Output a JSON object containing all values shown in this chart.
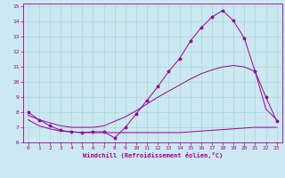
{
  "xlabel": "Windchill (Refroidissement éolien,°C)",
  "bg_color": "#cce8f0",
  "line_color": "#990099",
  "grid_color": "#aadddd",
  "xlim": [
    -0.5,
    23.5
  ],
  "ylim": [
    6,
    15.2
  ],
  "xticks": [
    0,
    1,
    2,
    3,
    4,
    5,
    6,
    7,
    8,
    9,
    10,
    11,
    12,
    13,
    14,
    15,
    16,
    17,
    18,
    19,
    20,
    21,
    22,
    23
  ],
  "yticks": [
    6,
    7,
    8,
    9,
    10,
    11,
    12,
    13,
    14,
    15
  ],
  "series1_x": [
    0,
    1,
    2,
    3,
    4,
    5,
    6,
    7,
    8,
    9,
    10,
    11,
    12,
    13,
    14,
    15,
    16,
    17,
    18,
    19,
    20,
    21,
    22,
    23
  ],
  "series1_y": [
    8.0,
    7.5,
    7.1,
    6.8,
    6.7,
    6.65,
    6.7,
    6.7,
    6.3,
    7.0,
    7.9,
    8.8,
    9.7,
    10.7,
    11.55,
    12.7,
    13.6,
    14.3,
    14.75,
    14.05,
    12.9,
    10.7,
    9.0,
    7.4
  ],
  "series2_x": [
    0,
    1,
    2,
    3,
    4,
    5,
    6,
    7,
    8,
    9,
    10,
    11,
    12,
    13,
    14,
    15,
    16,
    17,
    18,
    19,
    20,
    21,
    22,
    23
  ],
  "series2_y": [
    7.5,
    7.1,
    6.9,
    6.75,
    6.7,
    6.65,
    6.65,
    6.65,
    6.65,
    6.65,
    6.65,
    6.65,
    6.65,
    6.65,
    6.65,
    6.7,
    6.75,
    6.8,
    6.85,
    6.9,
    6.95,
    7.0,
    7.0,
    7.0
  ],
  "series3_x": [
    0,
    1,
    2,
    3,
    4,
    5,
    6,
    7,
    8,
    9,
    10,
    11,
    12,
    13,
    14,
    15,
    16,
    17,
    18,
    19,
    20,
    21,
    22,
    23
  ],
  "series3_y": [
    7.8,
    7.5,
    7.3,
    7.1,
    7.0,
    7.0,
    7.0,
    7.1,
    7.4,
    7.7,
    8.1,
    8.55,
    9.0,
    9.4,
    9.8,
    10.2,
    10.55,
    10.8,
    11.0,
    11.1,
    11.0,
    10.7,
    8.2,
    7.5
  ]
}
